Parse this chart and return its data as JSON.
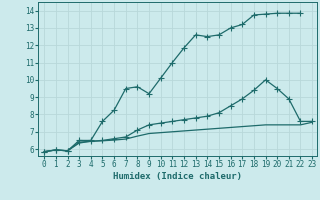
{
  "xlabel": "Humidex (Indice chaleur)",
  "bg_color": "#cceaec",
  "line_color": "#1e6b6b",
  "grid_color": "#b8d8da",
  "xlim_min": -0.5,
  "xlim_max": 23.4,
  "ylim_min": 5.6,
  "ylim_max": 14.5,
  "xticks": [
    0,
    1,
    2,
    3,
    4,
    5,
    6,
    7,
    8,
    9,
    10,
    11,
    12,
    13,
    14,
    15,
    16,
    17,
    18,
    19,
    20,
    21,
    22,
    23
  ],
  "yticks": [
    6,
    7,
    8,
    9,
    10,
    11,
    12,
    13,
    14
  ],
  "line1_x": [
    0,
    1,
    2,
    3,
    4,
    5,
    6,
    7,
    8,
    9,
    10,
    11,
    12,
    13,
    14,
    15,
    16,
    17,
    18,
    19,
    20,
    21,
    22
  ],
  "line1_y": [
    5.85,
    5.95,
    5.9,
    6.5,
    6.5,
    7.6,
    8.25,
    9.5,
    9.6,
    9.2,
    10.1,
    11.0,
    11.85,
    12.6,
    12.5,
    12.6,
    13.0,
    13.2,
    13.75,
    13.8,
    13.85,
    13.85,
    13.85
  ],
  "line2_x": [
    0,
    1,
    2,
    3,
    4,
    5,
    6,
    7,
    8,
    9,
    10,
    11,
    12,
    13,
    14,
    15,
    16,
    17,
    18,
    19,
    20,
    21,
    22,
    23
  ],
  "line2_y": [
    5.85,
    5.95,
    5.9,
    6.4,
    6.45,
    6.5,
    6.6,
    6.7,
    7.1,
    7.4,
    7.5,
    7.6,
    7.7,
    7.8,
    7.9,
    8.1,
    8.5,
    8.9,
    9.4,
    10.0,
    9.5,
    8.9,
    7.6,
    7.6
  ],
  "line3_x": [
    0,
    1,
    2,
    3,
    4,
    5,
    6,
    7,
    8,
    9,
    10,
    11,
    12,
    13,
    14,
    15,
    16,
    17,
    18,
    19,
    20,
    21,
    22,
    23
  ],
  "line3_y": [
    5.85,
    5.95,
    5.9,
    6.35,
    6.45,
    6.48,
    6.52,
    6.58,
    6.75,
    6.9,
    6.95,
    7.0,
    7.05,
    7.1,
    7.15,
    7.2,
    7.25,
    7.3,
    7.35,
    7.4,
    7.4,
    7.4,
    7.4,
    7.55
  ],
  "tick_fontsize": 5.5,
  "xlabel_fontsize": 6.5,
  "markersize": 2.2,
  "linewidth": 0.9
}
